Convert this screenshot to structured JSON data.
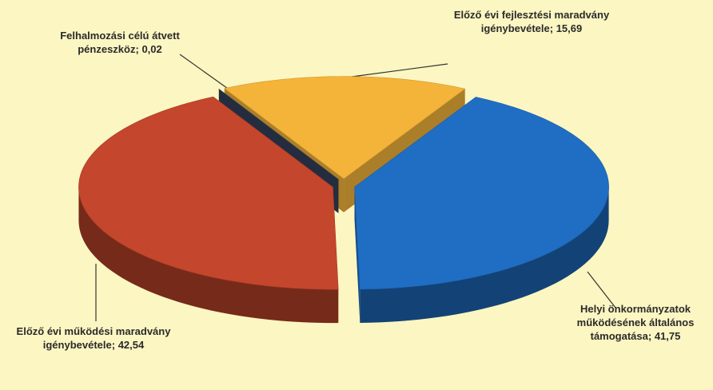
{
  "chart_data": {
    "type": "pie",
    "categories": [
      "Előző évi fejlesztési maradvány igénybevétele",
      "Helyi önkormányzatok működésének általános támogatása",
      "Előző évi működési maradvány igénybevétele",
      "Felhalmozási célú átvett pénzeszköz"
    ],
    "values": [
      15.69,
      41.75,
      42.54,
      0.02
    ],
    "value_labels": [
      "15,69",
      "41,75",
      "42,54",
      "0,02"
    ],
    "label_separator": ";",
    "colors": [
      "#f4b43a",
      "#1f6ec4",
      "#c4462c",
      "#34405a"
    ]
  }
}
